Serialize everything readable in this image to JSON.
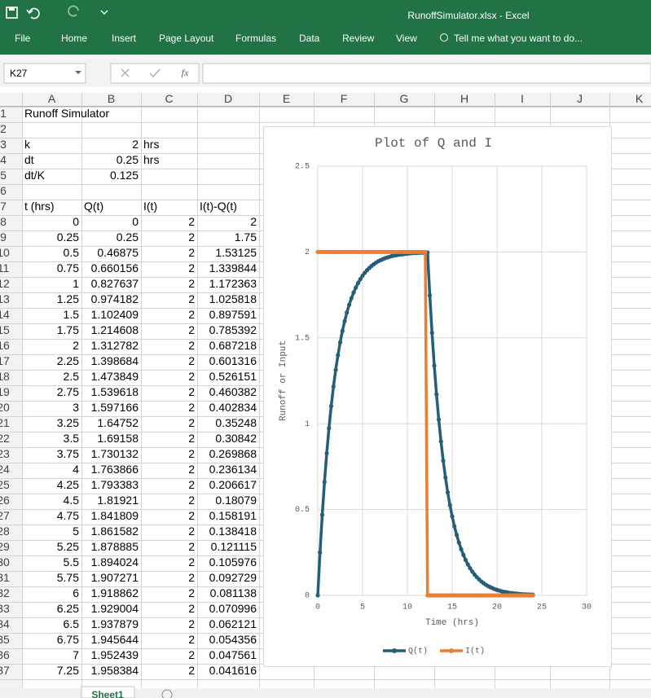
{
  "app": {
    "title": "RunoffSimulator.xlsx - Excel",
    "tabs": [
      "File",
      "Home",
      "Insert",
      "Page Layout",
      "Formulas",
      "Data",
      "Review",
      "View"
    ],
    "tell_me": "Tell me what you want to do...",
    "name_box": "K27",
    "fx_label": "fx",
    "sheet_tab": "Sheet1"
  },
  "sheet": {
    "columns": [
      "A",
      "B",
      "C",
      "D",
      "E",
      "F",
      "G",
      "H",
      "I",
      "J",
      "K"
    ],
    "row_numbers": [
      1,
      2,
      3,
      4,
      5,
      6,
      7,
      8,
      9,
      10,
      11,
      12,
      13,
      14,
      15,
      16,
      17,
      18,
      19,
      20,
      21,
      22,
      23,
      24,
      25,
      26,
      27,
      28,
      29,
      30,
      31,
      32,
      33,
      34,
      35,
      36,
      37
    ],
    "rows": [
      [
        "Runoff Simulator",
        null,
        null,
        null
      ],
      [
        null,
        null,
        null,
        null
      ],
      [
        "k",
        2,
        "hrs",
        null
      ],
      [
        "dt",
        0.25,
        "hrs",
        null
      ],
      [
        "dt/K",
        0.125,
        null,
        null
      ],
      [
        null,
        null,
        null,
        null
      ],
      [
        "t (hrs)",
        "Q(t)",
        "I(t)",
        "I(t)-Q(t)"
      ],
      [
        0,
        0,
        2,
        2
      ],
      [
        0.25,
        0.25,
        2,
        1.75
      ],
      [
        0.5,
        0.46875,
        2,
        1.53125
      ],
      [
        0.75,
        0.660156,
        2,
        1.339844
      ],
      [
        1,
        0.827637,
        2,
        1.172363
      ],
      [
        1.25,
        0.974182,
        2,
        1.025818
      ],
      [
        1.5,
        1.102409,
        2,
        0.897591
      ],
      [
        1.75,
        1.214608,
        2,
        0.785392
      ],
      [
        2,
        1.312782,
        2,
        0.687218
      ],
      [
        2.25,
        1.398684,
        2,
        0.601316
      ],
      [
        2.5,
        1.473849,
        2,
        0.526151
      ],
      [
        2.75,
        1.539618,
        2,
        0.460382
      ],
      [
        3,
        1.597166,
        2,
        0.402834
      ],
      [
        3.25,
        1.64752,
        2,
        0.35248
      ],
      [
        3.5,
        1.69158,
        2,
        0.30842
      ],
      [
        3.75,
        1.730132,
        2,
        0.269868
      ],
      [
        4,
        1.763866,
        2,
        0.236134
      ],
      [
        4.25,
        1.793383,
        2,
        0.206617
      ],
      [
        4.5,
        1.81921,
        2,
        0.18079
      ],
      [
        4.75,
        1.841809,
        2,
        0.158191
      ],
      [
        5,
        1.861582,
        2,
        0.138418
      ],
      [
        5.25,
        1.878885,
        2,
        0.121115
      ],
      [
        5.5,
        1.894024,
        2,
        0.105976
      ],
      [
        5.75,
        1.907271,
        2,
        0.092729
      ],
      [
        6,
        1.918862,
        2,
        0.081138
      ],
      [
        6.25,
        1.929004,
        2,
        0.070996
      ],
      [
        6.5,
        1.937879,
        2,
        0.062121
      ],
      [
        6.75,
        1.945644,
        2,
        0.054356
      ],
      [
        7,
        1.952439,
        2,
        0.047561
      ],
      [
        7.25,
        1.958384,
        2,
        0.041616
      ]
    ]
  },
  "chart_data": {
    "type": "line",
    "title": "Plot of Q and I",
    "x_label": "Time (hrs)",
    "y_label": "Runoff or Input",
    "x": [
      0,
      0.25,
      0.5,
      0.75,
      1,
      1.25,
      1.5,
      1.75,
      2,
      2.25,
      2.5,
      2.75,
      3,
      3.25,
      3.5,
      3.75,
      4,
      4.25,
      4.5,
      4.75,
      5,
      5.25,
      5.5,
      5.75,
      6,
      6.25,
      6.5,
      6.75,
      7,
      7.25,
      7.5,
      7.75,
      8,
      8.25,
      8.5,
      8.75,
      9,
      9.25,
      9.5,
      9.75,
      10,
      10.25,
      10.5,
      10.75,
      11,
      11.25,
      11.5,
      11.75,
      12,
      12.25,
      12.5,
      12.75,
      13,
      13.25,
      13.5,
      13.75,
      14,
      14.25,
      14.5,
      14.75,
      15,
      15.25,
      15.5,
      15.75,
      16,
      16.25,
      16.5,
      16.75,
      17,
      17.25,
      17.5,
      17.75,
      18,
      18.25,
      18.5,
      18.75,
      19,
      19.25,
      19.5,
      19.75,
      20,
      20.25,
      20.5,
      20.75,
      21,
      21.25,
      21.5,
      21.75,
      22,
      22.25,
      22.5,
      22.75,
      23,
      23.25,
      23.5,
      23.75,
      24
    ],
    "series": [
      {
        "name": "Q(t)",
        "color": "#255e79",
        "values": [
          0,
          0.25,
          0.469,
          0.66,
          0.828,
          0.974,
          1.102,
          1.215,
          1.313,
          1.399,
          1.474,
          1.54,
          1.597,
          1.648,
          1.692,
          1.73,
          1.764,
          1.793,
          1.819,
          1.842,
          1.862,
          1.879,
          1.894,
          1.907,
          1.919,
          1.929,
          1.938,
          1.946,
          1.952,
          1.958,
          1.964,
          1.968,
          1.972,
          1.976,
          1.979,
          1.981,
          1.984,
          1.986,
          1.987,
          1.989,
          1.99,
          1.992,
          1.993,
          1.994,
          1.994,
          1.995,
          1.996,
          1.996,
          1.997,
          1.997,
          1.747,
          1.529,
          1.338,
          1.171,
          1.024,
          0.896,
          0.784,
          0.686,
          0.6,
          0.525,
          0.46,
          0.402,
          0.352,
          0.308,
          0.269,
          0.236,
          0.206,
          0.18,
          0.158,
          0.138,
          0.121,
          0.106,
          0.093,
          0.081,
          0.071,
          0.062,
          0.054,
          0.048,
          0.042,
          0.036,
          0.032,
          0.028,
          0.024,
          0.021,
          0.019,
          0.016,
          0.014,
          0.013,
          0.011,
          0.01,
          0.008,
          0.007,
          0.006,
          0.006,
          0.005,
          0.004,
          0.004
        ]
      },
      {
        "name": "I(t)",
        "color": "#ed7d31",
        "values": [
          2,
          2,
          2,
          2,
          2,
          2,
          2,
          2,
          2,
          2,
          2,
          2,
          2,
          2,
          2,
          2,
          2,
          2,
          2,
          2,
          2,
          2,
          2,
          2,
          2,
          2,
          2,
          2,
          2,
          2,
          2,
          2,
          2,
          2,
          2,
          2,
          2,
          2,
          2,
          2,
          2,
          2,
          2,
          2,
          2,
          2,
          2,
          2,
          2,
          0,
          0,
          0,
          0,
          0,
          0,
          0,
          0,
          0,
          0,
          0,
          0,
          0,
          0,
          0,
          0,
          0,
          0,
          0,
          0,
          0,
          0,
          0,
          0,
          0,
          0,
          0,
          0,
          0,
          0,
          0,
          0,
          0,
          0,
          0,
          0,
          0,
          0,
          0,
          0,
          0,
          0,
          0,
          0,
          0,
          0,
          0,
          0
        ]
      }
    ],
    "xlim": [
      0,
      30
    ],
    "ylim": [
      0,
      2.5
    ],
    "xticks": [
      0,
      5,
      10,
      15,
      20,
      25,
      30
    ],
    "yticks": [
      0,
      0.5,
      1,
      1.5,
      2,
      2.5
    ],
    "grid": true,
    "markers": true,
    "legend": "bottom"
  }
}
